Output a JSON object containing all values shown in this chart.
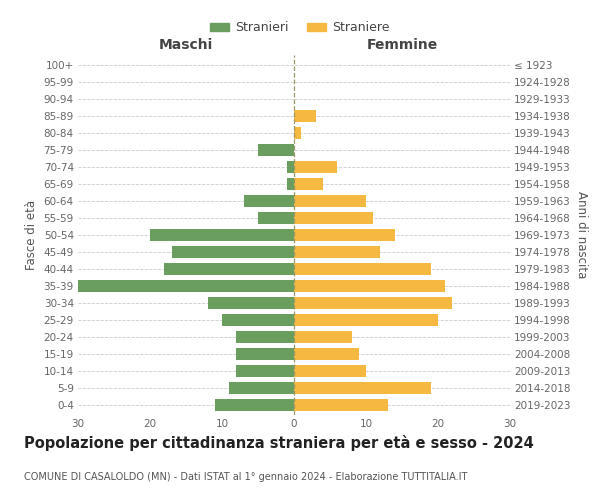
{
  "age_groups": [
    "0-4",
    "5-9",
    "10-14",
    "15-19",
    "20-24",
    "25-29",
    "30-34",
    "35-39",
    "40-44",
    "45-49",
    "50-54",
    "55-59",
    "60-64",
    "65-69",
    "70-74",
    "75-79",
    "80-84",
    "85-89",
    "90-94",
    "95-99",
    "100+"
  ],
  "birth_years": [
    "2019-2023",
    "2014-2018",
    "2009-2013",
    "2004-2008",
    "1999-2003",
    "1994-1998",
    "1989-1993",
    "1984-1988",
    "1979-1983",
    "1974-1978",
    "1969-1973",
    "1964-1968",
    "1959-1963",
    "1954-1958",
    "1949-1953",
    "1944-1948",
    "1939-1943",
    "1934-1938",
    "1929-1933",
    "1924-1928",
    "≤ 1923"
  ],
  "males": [
    11,
    9,
    8,
    8,
    8,
    10,
    12,
    30,
    18,
    17,
    20,
    5,
    7,
    1,
    1,
    5,
    0,
    0,
    0,
    0,
    0
  ],
  "females": [
    13,
    19,
    10,
    9,
    8,
    20,
    22,
    21,
    19,
    12,
    14,
    11,
    10,
    4,
    6,
    0,
    1,
    3,
    0,
    0,
    0
  ],
  "male_color": "#6a9e5e",
  "female_color": "#f5b942",
  "background_color": "#ffffff",
  "grid_color": "#cccccc",
  "title": "Popolazione per cittadinanza straniera per età e sesso - 2024",
  "subtitle": "COMUNE DI CASALOLDO (MN) - Dati ISTAT al 1° gennaio 2024 - Elaborazione TUTTITALIA.IT",
  "left_label": "Maschi",
  "right_label": "Femmine",
  "ylabel": "Fasce di età",
  "right_ylabel": "Anni di nascita",
  "legend_male": "Stranieri",
  "legend_female": "Straniere",
  "xlim": 30,
  "title_fontsize": 10.5,
  "subtitle_fontsize": 7.0,
  "axis_fontsize": 8.5,
  "tick_fontsize": 7.5
}
